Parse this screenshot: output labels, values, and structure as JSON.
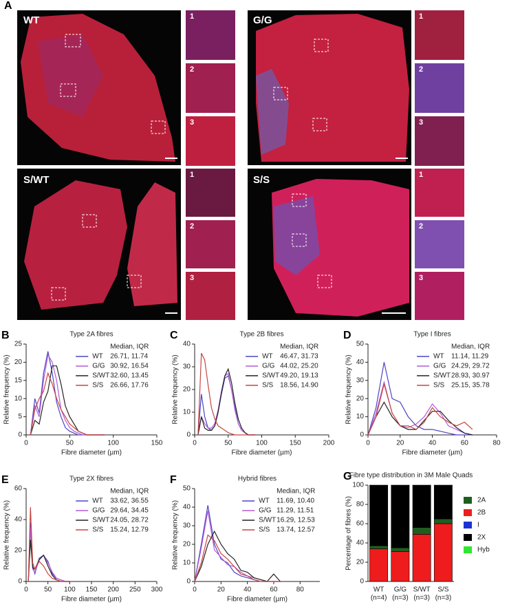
{
  "figure": {
    "panel": "A",
    "images": [
      {
        "label": "WT",
        "insets": [
          "1",
          "2",
          "3"
        ]
      },
      {
        "label": "G/G",
        "insets": [
          "1",
          "2",
          "3"
        ]
      },
      {
        "label": "S/WT",
        "insets": [
          "1",
          "2",
          "3"
        ]
      },
      {
        "label": "S/S",
        "insets": [
          "1",
          "2",
          "3"
        ]
      }
    ]
  },
  "chart_data": [
    {
      "type": "line",
      "panel": "B",
      "title": "Type 2A fibres",
      "x_label": "Fibre diameter (µm)",
      "y_label": "Relative frequency (%)",
      "legend_header": "Median, IQR",
      "x": [
        5,
        10,
        15,
        20,
        25,
        30,
        35,
        40,
        45,
        50,
        55,
        60,
        65,
        70,
        75,
        80,
        85,
        90
      ],
      "xlim": [
        0,
        150
      ],
      "xticks": [
        0,
        50,
        100,
        150
      ],
      "ylim": [
        0,
        25
      ],
      "yticks": [
        0,
        5,
        10,
        15,
        20,
        25
      ],
      "series": [
        {
          "name": "WT",
          "stats": "26.71, 11.74",
          "color": "#4b44c8",
          "values": [
            0,
            10,
            6,
            17,
            23,
            17,
            9,
            5,
            2,
            1,
            0.5,
            0,
            0,
            0,
            0,
            0,
            0,
            0
          ]
        },
        {
          "name": "G/G",
          "stats": "30.92, 16.54",
          "color": "#b45ad6",
          "values": [
            0,
            8,
            5,
            15,
            22,
            20,
            15,
            7,
            4,
            2,
            1,
            0.5,
            0,
            0,
            0,
            0,
            0,
            0
          ]
        },
        {
          "name": "S/WT",
          "stats": "32.60, 13.45",
          "color": "#222222",
          "values": [
            0,
            4,
            3,
            9,
            12,
            19,
            19,
            14,
            8,
            5,
            3,
            1,
            0.5,
            0,
            0,
            0,
            0,
            0
          ]
        },
        {
          "name": "S/S",
          "stats": "26.66, 17.76",
          "color": "#c8433f",
          "values": [
            0,
            7,
            10,
            12,
            17,
            14,
            10,
            7,
            5,
            3,
            2,
            1,
            0.5,
            0,
            0,
            0,
            0,
            0
          ]
        }
      ]
    },
    {
      "type": "line",
      "panel": "C",
      "title": "Type 2B fibres",
      "x_label": "Fibre diameter (µm)",
      "y_label": "Relative frequency (%)",
      "legend_header": "Median, IQR",
      "x": [
        5,
        10,
        15,
        20,
        25,
        30,
        35,
        40,
        45,
        50,
        55,
        60,
        65,
        70,
        75,
        80,
        85,
        90
      ],
      "xlim": [
        0,
        200
      ],
      "xticks": [
        0,
        50,
        100,
        150,
        200
      ],
      "ylim": [
        0,
        40
      ],
      "yticks": [
        0,
        10,
        20,
        30,
        40
      ],
      "series": [
        {
          "name": "WT",
          "stats": "46.47, 31.73",
          "color": "#4b44c8",
          "values": [
            0,
            18,
            8,
            3,
            2,
            4,
            10,
            18,
            25,
            26,
            20,
            12,
            5,
            2,
            1,
            0,
            0,
            0
          ]
        },
        {
          "name": "G/G",
          "stats": "44.02, 25.20",
          "color": "#b45ad6",
          "values": [
            0,
            8,
            5,
            3,
            3,
            5,
            11,
            19,
            26,
            27,
            20,
            11,
            5,
            2,
            1,
            0,
            0,
            0
          ]
        },
        {
          "name": "S/WT",
          "stats": "49.20, 19.13",
          "color": "#222222",
          "values": [
            0,
            8,
            3,
            2,
            2,
            4,
            10,
            19,
            26,
            29,
            23,
            14,
            7,
            3,
            1,
            0,
            0,
            0
          ]
        },
        {
          "name": "S/S",
          "stats": "18.56, 14.90",
          "color": "#c8433f",
          "values": [
            0,
            36,
            33,
            22,
            12,
            7,
            4,
            3,
            2,
            1,
            0.5,
            0,
            0,
            0,
            0,
            0,
            0,
            0
          ]
        }
      ]
    },
    {
      "type": "line",
      "panel": "D",
      "title": "Type I fibres",
      "x_label": "Fibre diameter (µm)",
      "y_label": "Relative frequency (%)",
      "legend_header": "Median, IQR",
      "x": [
        0,
        5,
        10,
        15,
        20,
        25,
        30,
        35,
        40,
        45,
        50,
        55,
        60,
        65
      ],
      "xlim": [
        0,
        80
      ],
      "xticks": [
        0,
        20,
        40,
        60,
        80
      ],
      "ylim": [
        0,
        50
      ],
      "yticks": [
        0,
        10,
        20,
        30,
        40,
        50
      ],
      "series": [
        {
          "name": "WT",
          "stats": "11.14, 11.29",
          "color": "#4b44c8",
          "values": [
            0,
            15,
            40,
            20,
            18,
            10,
            5,
            3,
            3,
            2,
            1,
            0,
            0,
            0
          ]
        },
        {
          "name": "G/G",
          "stats": "24.29, 29.72",
          "color": "#b45ad6",
          "values": [
            0,
            12,
            29,
            12,
            5,
            4,
            6,
            10,
            17,
            12,
            5,
            3,
            1,
            0
          ]
        },
        {
          "name": "S/WT",
          "stats": "28.93, 30.97",
          "color": "#222222",
          "values": [
            0,
            10,
            18,
            10,
            5,
            3,
            3,
            8,
            13,
            13,
            8,
            4,
            1,
            0
          ]
        },
        {
          "name": "S/S",
          "stats": "25.15, 35.78",
          "color": "#c8433f",
          "values": [
            0,
            10,
            28,
            12,
            5,
            5,
            3,
            7,
            15,
            10,
            7,
            5,
            7,
            3
          ]
        }
      ]
    },
    {
      "type": "line",
      "panel": "E",
      "title": "Type 2X fibres",
      "x_label": "Fibre diameter (µm)",
      "y_label": "Relative frequency (%)",
      "legend_header": "Median, IQR",
      "x": [
        5,
        10,
        15,
        20,
        30,
        40,
        50,
        60,
        70,
        80,
        90,
        100
      ],
      "xlim": [
        0,
        300
      ],
      "xticks": [
        0,
        50,
        100,
        150,
        200,
        250,
        300
      ],
      "ylim": [
        0,
        60
      ],
      "yticks": [
        0,
        20,
        40,
        60
      ],
      "series": [
        {
          "name": "WT",
          "stats": "33.62, 36.55",
          "color": "#4b44c8",
          "values": [
            0,
            38,
            10,
            5,
            15,
            17,
            13,
            5,
            2,
            1,
            0,
            0
          ]
        },
        {
          "name": "G/G",
          "stats": "29.64, 34.45",
          "color": "#b45ad6",
          "values": [
            0,
            35,
            8,
            6,
            14,
            17,
            12,
            6,
            2,
            1,
            0,
            0
          ]
        },
        {
          "name": "S/WT",
          "stats": "24.05, 28.72",
          "color": "#222222",
          "values": [
            0,
            27,
            9,
            8,
            14,
            17,
            10,
            4,
            1,
            0,
            0,
            0
          ]
        },
        {
          "name": "S/S",
          "stats": "15.24, 12.79",
          "color": "#c8433f",
          "values": [
            0,
            48,
            12,
            8,
            13,
            10,
            5,
            2,
            1,
            0,
            0,
            0
          ]
        }
      ]
    },
    {
      "type": "line",
      "panel": "F",
      "title": "Hybrid fibres",
      "x_label": "Fibre diameter (µm)",
      "y_label": "Relative frequency (%)",
      "legend_header": "Median, IQR",
      "x": [
        0,
        5,
        10,
        15,
        20,
        25,
        30,
        35,
        40,
        45,
        50,
        55,
        60,
        65
      ],
      "xlim": [
        0,
        95
      ],
      "xticks": [
        0,
        20,
        40,
        60,
        80
      ],
      "ylim": [
        0,
        50
      ],
      "yticks": [
        0,
        10,
        20,
        30,
        40,
        50
      ],
      "series": [
        {
          "name": "WT",
          "stats": "11.69, 10.40",
          "color": "#4b44c8",
          "values": [
            0,
            20,
            41,
            20,
            12,
            10,
            5,
            3,
            2,
            1,
            0,
            0,
            0,
            0
          ]
        },
        {
          "name": "G/G",
          "stats": "11.29, 11.51",
          "color": "#b45ad6",
          "values": [
            0,
            18,
            38,
            17,
            13,
            9,
            8,
            5,
            3,
            2,
            1,
            0,
            0,
            0
          ]
        },
        {
          "name": "S/WT",
          "stats": "16.29, 12.53",
          "color": "#222222",
          "values": [
            0,
            8,
            20,
            27,
            20,
            15,
            12,
            6,
            5,
            2,
            1,
            0,
            4,
            0
          ]
        },
        {
          "name": "S/S",
          "stats": "13.74, 12.57",
          "color": "#c8433f",
          "values": [
            0,
            10,
            25,
            22,
            15,
            12,
            8,
            4,
            3,
            1,
            0,
            0,
            0,
            0
          ]
        }
      ]
    },
    {
      "type": "stacked_bar",
      "panel": "G",
      "title": "Fibre type distribution in 3M Male Quads",
      "y_label": "Percentage of fibres (%)",
      "categories": [
        "WT",
        "G/G",
        "S/WT",
        "S/S"
      ],
      "category_notes": [
        "(n=4)",
        "(n=3)",
        "(n=3)",
        "(n=3)"
      ],
      "ylim": [
        0,
        100
      ],
      "yticks": [
        0,
        20,
        40,
        60,
        80,
        100
      ],
      "series": [
        {
          "name": "2A",
          "color": "#1f5e1f",
          "values": [
            3,
            4,
            7,
            5
          ]
        },
        {
          "name": "2B",
          "color": "#ee1c1c",
          "values": [
            34,
            31,
            49,
            60
          ]
        },
        {
          "name": "I",
          "color": "#1a33d6",
          "values": [
            0.2,
            0.2,
            0.2,
            0.2
          ]
        },
        {
          "name": "2X",
          "color": "#000000",
          "values": [
            62.5,
            64.5,
            43.5,
            34.5
          ]
        },
        {
          "name": "Hyb",
          "color": "#2ee82e",
          "values": [
            0.3,
            0.3,
            0.3,
            0.3
          ]
        }
      ]
    }
  ]
}
